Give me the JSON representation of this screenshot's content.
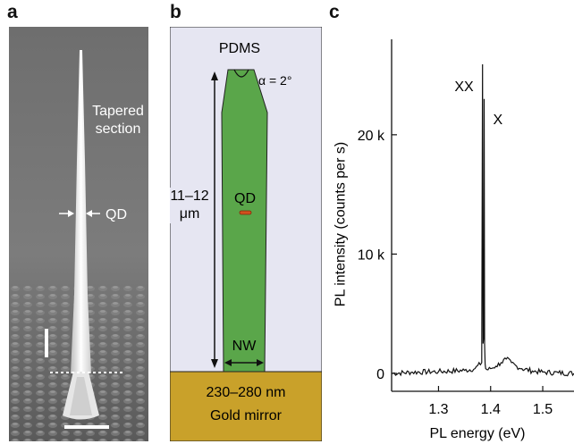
{
  "panels": {
    "a": {
      "letter": "a",
      "labels": {
        "tapered": [
          "Tapered",
          "section"
        ],
        "qd": "QD"
      }
    },
    "b": {
      "letter": "b",
      "labels": {
        "pdms": "PDMS",
        "alpha": "α = 2°",
        "height": [
          "11–12",
          "μm"
        ],
        "qd": "QD",
        "nw": "NW",
        "thickness": "230–280 nm",
        "mirror": "Gold mirror"
      },
      "colors": {
        "pdms": "#e6e6f2",
        "nanowire": "#5aa64a",
        "qd": "#d2511e",
        "gold": "#c9a12a"
      }
    },
    "c": {
      "letter": "c"
    }
  },
  "chart_data": {
    "type": "line",
    "xlabel": "PL energy (eV)",
    "ylabel": "PL intensity (counts per s)",
    "xlim": [
      1.21,
      1.56
    ],
    "ylim": [
      -1500,
      28000
    ],
    "xticks": [
      {
        "value": 1.3,
        "label": "1.3"
      },
      {
        "value": 1.4,
        "label": "1.4"
      },
      {
        "value": 1.5,
        "label": "1.5"
      }
    ],
    "yticks": [
      {
        "value": 0,
        "label": "0"
      },
      {
        "value": 10000,
        "label": "10 k"
      },
      {
        "value": 20000,
        "label": "20 k"
      }
    ],
    "series": [
      {
        "x": [
          1.21,
          1.25,
          1.3,
          1.35,
          1.37,
          1.383,
          1.3845,
          1.3855,
          1.387,
          1.3875,
          1.3885,
          1.3895,
          1.3905,
          1.395,
          1.4,
          1.41,
          1.42,
          1.43,
          1.44,
          1.45,
          1.46,
          1.48,
          1.5,
          1.53,
          1.56
        ],
        "y": [
          0,
          100,
          150,
          250,
          400,
          900,
          25900,
          2500,
          3200,
          23000,
          2500,
          800,
          400,
          300,
          400,
          600,
          900,
          1200,
          900,
          600,
          400,
          200,
          100,
          50,
          0
        ]
      }
    ],
    "annotations": [
      {
        "text": "XX",
        "x": 1.3845,
        "y": 25900
      },
      {
        "text": "X",
        "x": 1.3875,
        "y": 23000
      }
    ]
  }
}
